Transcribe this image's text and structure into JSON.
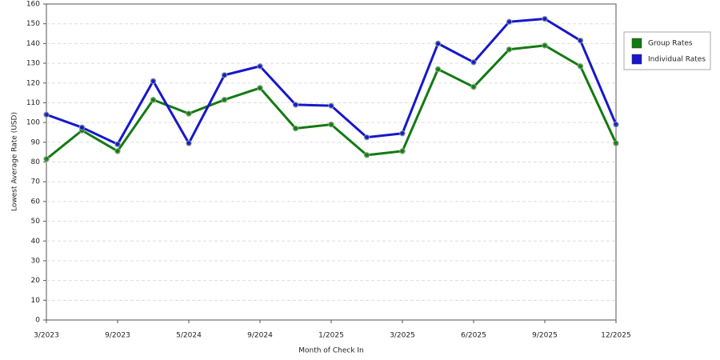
{
  "chart_data": {
    "type": "line",
    "x_label": "Month of Check In",
    "y_label": "Lowest Average Rate (USD)",
    "categories": [
      "3/2023",
      null,
      "9/2023",
      null,
      "5/2024",
      null,
      "9/2024",
      null,
      "1/2025",
      null,
      "3/2025",
      null,
      "6/2025",
      null,
      "9/2025",
      null,
      "12/2025"
    ],
    "series": [
      {
        "name": "Group Rates",
        "color": "#137a13",
        "values": [
          81.5,
          96,
          85.5,
          111.5,
          104.5,
          111.5,
          117.5,
          97,
          99,
          83.5,
          85.5,
          127,
          118,
          137,
          139,
          128.5,
          89.5
        ]
      },
      {
        "name": "Individual Rates",
        "color": "#1717cc",
        "values": [
          104,
          97.5,
          89,
          121,
          89.5,
          124,
          128.5,
          109,
          108.5,
          92.5,
          94.5,
          140,
          130.5,
          151,
          152.5,
          141.5,
          99
        ]
      }
    ],
    "ylim": [
      0,
      160
    ],
    "yticks": [
      0,
      10,
      20,
      30,
      40,
      50,
      60,
      70,
      80,
      90,
      100,
      110,
      120,
      130,
      140,
      150,
      160
    ],
    "grid": true,
    "legend": "right"
  }
}
